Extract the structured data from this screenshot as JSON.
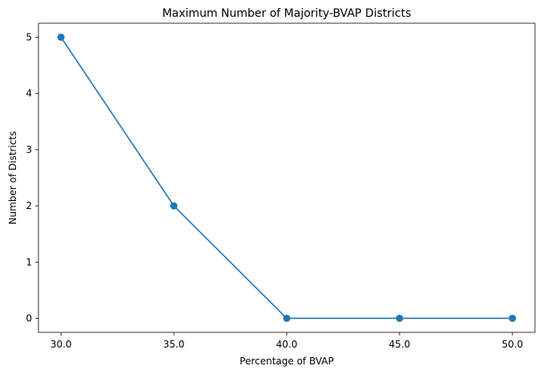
{
  "chart_data": {
    "type": "line",
    "title": "Maximum Number of Majority-BVAP Districts",
    "xlabel": "Percentage of BVAP",
    "ylabel": "Number of Districts",
    "x": [
      30.0,
      35.0,
      40.0,
      45.0,
      50.0
    ],
    "series": [
      {
        "values": [
          5,
          2,
          0,
          0,
          0
        ],
        "color": "#1f77b4",
        "marker": "circle"
      }
    ],
    "xticks": [
      "30.0",
      "35.0",
      "40.0",
      "45.0",
      "50.0"
    ],
    "yticks": [
      "0",
      "1",
      "2",
      "3",
      "4",
      "5"
    ],
    "xlim": [
      29.0,
      51.0
    ],
    "ylim": [
      -0.25,
      5.25
    ],
    "grid": false,
    "legend": "none"
  }
}
